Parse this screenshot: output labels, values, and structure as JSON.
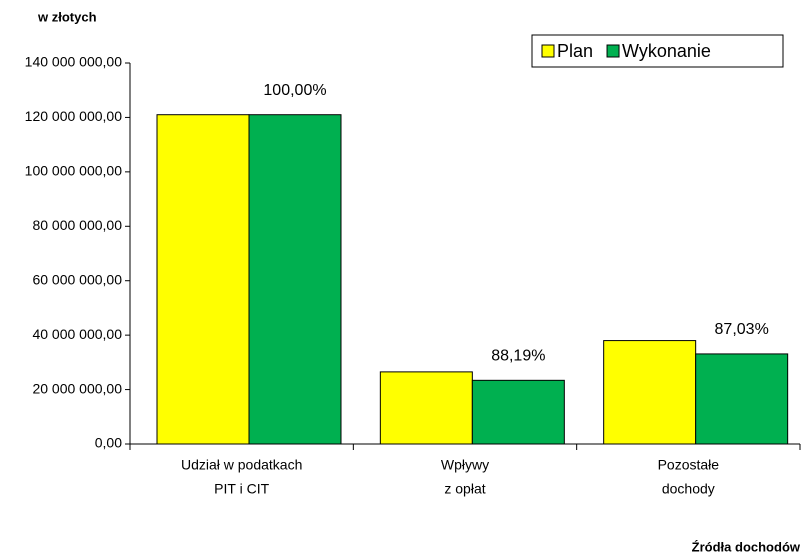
{
  "chart_data": {
    "type": "bar",
    "y_label": "w złotych",
    "x_label": "Źródła dochodów",
    "categories": [
      [
        "Udział w podatkach",
        "PIT i CIT"
      ],
      [
        "Wpływy",
        "z opłat"
      ],
      [
        "Pozostałe",
        "dochody"
      ]
    ],
    "series": [
      {
        "name": "Plan",
        "color": "#ffff00",
        "values": [
          121000000,
          26500000,
          38000000
        ]
      },
      {
        "name": "Wykonanie",
        "color": "#00b050",
        "values": [
          121000000,
          23400000,
          33100000
        ]
      }
    ],
    "annotations": [
      "100,00%",
      "88,19%",
      "87,03%"
    ],
    "ylim": [
      0,
      140000000
    ],
    "yticks": [
      {
        "value": 0,
        "label": "0,00"
      },
      {
        "value": 20000000,
        "label": "20 000 000,00"
      },
      {
        "value": 40000000,
        "label": "40 000 000,00"
      },
      {
        "value": 60000000,
        "label": "60 000 000,00"
      },
      {
        "value": 80000000,
        "label": "80 000 000,00"
      },
      {
        "value": 100000000,
        "label": "100 000 000,00"
      },
      {
        "value": 120000000,
        "label": "120 000 000,00"
      },
      {
        "value": 140000000,
        "label": "140 000 000,00"
      }
    ],
    "legend": "top-right"
  }
}
